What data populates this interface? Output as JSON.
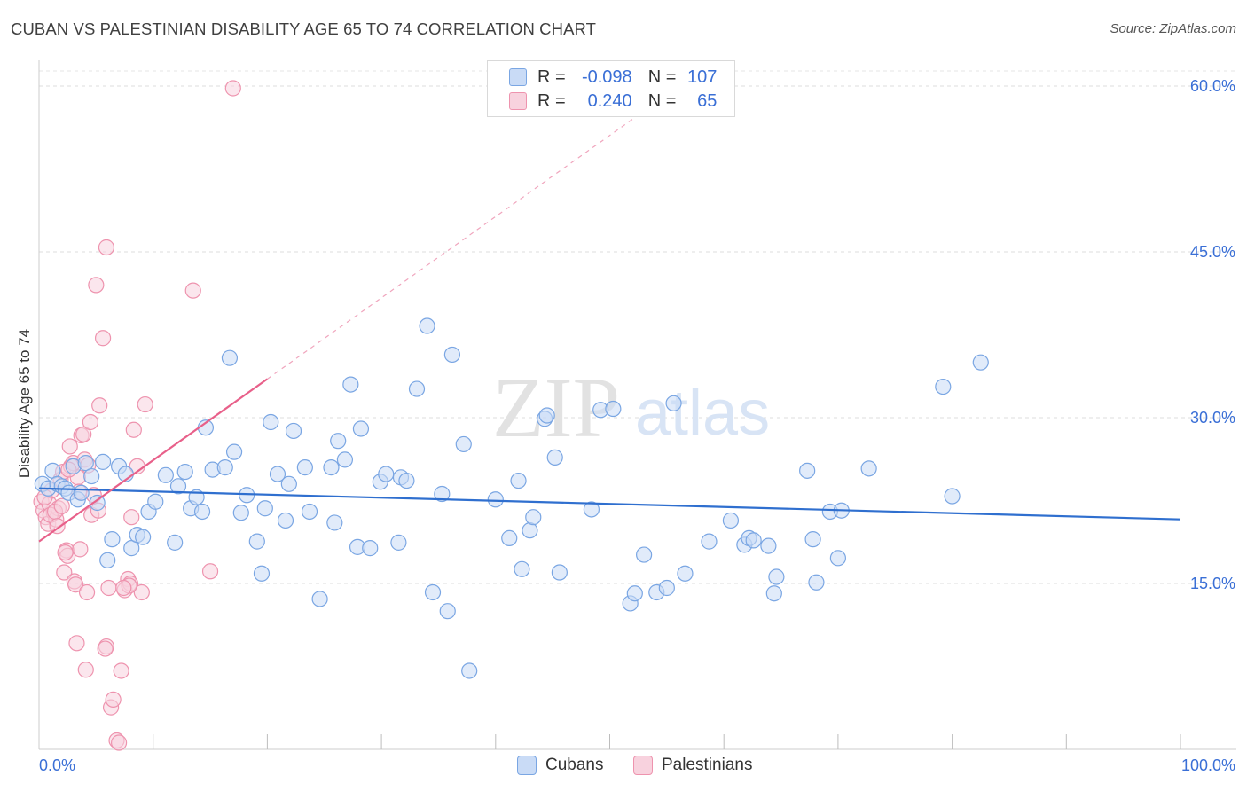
{
  "header": {
    "title": "CUBAN VS PALESTINIAN DISABILITY AGE 65 TO 74 CORRELATION CHART",
    "source": "Source: ZipAtlas.com"
  },
  "watermark": {
    "zip": "ZIP",
    "atlas": "atlas"
  },
  "legend": {
    "rows": [
      {
        "r_label": "R =",
        "r_value": "-0.098",
        "n_label": "N =",
        "n_value": "107",
        "color": "#a9c6f0",
        "border": "#7aa6e3"
      },
      {
        "r_label": "R =",
        "r_value": "0.240",
        "n_label": "N =",
        "n_value": "65",
        "color": "#f8bfd0",
        "border": "#ee93ae"
      }
    ]
  },
  "bottom_legend": {
    "cubans": "Cubans",
    "palestinians": "Palestinians"
  },
  "chart_data": {
    "type": "scatter",
    "title": "CUBAN VS PALESTINIAN DISABILITY AGE 65 TO 74 CORRELATION CHART",
    "xlabel": "",
    "ylabel": "Disability Age 65 to 74",
    "xlim": [
      0,
      100
    ],
    "ylim": [
      0,
      60
    ],
    "y_ticks": [
      {
        "value": 15,
        "label": "15.0%"
      },
      {
        "value": 30,
        "label": "30.0%"
      },
      {
        "value": 45,
        "label": "45.0%"
      },
      {
        "value": 60,
        "label": "60.0%"
      }
    ],
    "x_tick_labels": {
      "min": "0.0%",
      "max": "100.0%"
    },
    "x_minor_ticks": [
      10,
      20,
      30,
      40,
      50,
      60,
      70,
      80,
      90,
      100
    ],
    "grid": true,
    "legend_placement": "bottom-center",
    "series": [
      {
        "name": "Cubans",
        "color": "#7aa6e3",
        "fill": "#c9dbf6",
        "trend": {
          "x": [
            0,
            100
          ],
          "y": [
            23.6,
            20.8
          ],
          "color": "#2f6fcf"
        },
        "points": [
          [
            0.3,
            24.0
          ],
          [
            0.8,
            23.6
          ],
          [
            1.2,
            25.2
          ],
          [
            1.6,
            24.0
          ],
          [
            2.0,
            23.8
          ],
          [
            2.3,
            23.6
          ],
          [
            2.6,
            23.2
          ],
          [
            3.0,
            25.6
          ],
          [
            3.4,
            22.6
          ],
          [
            3.7,
            23.2
          ],
          [
            4.1,
            25.9
          ],
          [
            4.6,
            24.7
          ],
          [
            5.1,
            22.3
          ],
          [
            5.6,
            26.0
          ],
          [
            6.0,
            17.1
          ],
          [
            6.4,
            19.0
          ],
          [
            7.0,
            25.6
          ],
          [
            7.6,
            24.9
          ],
          [
            8.1,
            18.2
          ],
          [
            8.6,
            19.4
          ],
          [
            9.1,
            19.2
          ],
          [
            9.6,
            21.5
          ],
          [
            10.2,
            22.4
          ],
          [
            11.1,
            24.8
          ],
          [
            11.9,
            18.7
          ],
          [
            12.2,
            23.8
          ],
          [
            12.8,
            25.1
          ],
          [
            13.3,
            21.8
          ],
          [
            13.8,
            22.8
          ],
          [
            14.3,
            21.5
          ],
          [
            14.6,
            29.1
          ],
          [
            15.2,
            25.3
          ],
          [
            16.3,
            25.5
          ],
          [
            16.7,
            35.4
          ],
          [
            17.1,
            26.9
          ],
          [
            17.7,
            21.4
          ],
          [
            18.2,
            23.0
          ],
          [
            19.1,
            18.8
          ],
          [
            19.5,
            15.9
          ],
          [
            19.8,
            21.8
          ],
          [
            20.3,
            29.6
          ],
          [
            20.9,
            24.9
          ],
          [
            21.6,
            20.7
          ],
          [
            21.9,
            24.0
          ],
          [
            22.3,
            28.8
          ],
          [
            23.3,
            25.5
          ],
          [
            23.7,
            21.5
          ],
          [
            24.6,
            13.6
          ],
          [
            25.6,
            25.5
          ],
          [
            25.9,
            20.5
          ],
          [
            26.2,
            27.9
          ],
          [
            26.8,
            26.2
          ],
          [
            27.3,
            33.0
          ],
          [
            27.9,
            18.3
          ],
          [
            28.2,
            29.0
          ],
          [
            29.0,
            18.2
          ],
          [
            29.9,
            24.2
          ],
          [
            30.4,
            24.9
          ],
          [
            31.5,
            18.7
          ],
          [
            31.7,
            24.6
          ],
          [
            32.2,
            24.3
          ],
          [
            33.1,
            32.6
          ],
          [
            34.0,
            38.3
          ],
          [
            34.5,
            14.2
          ],
          [
            35.3,
            23.1
          ],
          [
            35.8,
            12.5
          ],
          [
            36.2,
            35.7
          ],
          [
            37.2,
            27.6
          ],
          [
            37.7,
            7.1
          ],
          [
            40.0,
            22.6
          ],
          [
            41.2,
            19.1
          ],
          [
            42.0,
            24.3
          ],
          [
            42.3,
            16.3
          ],
          [
            43.0,
            19.8
          ],
          [
            43.3,
            21.0
          ],
          [
            44.3,
            29.9
          ],
          [
            44.5,
            30.2
          ],
          [
            45.2,
            26.4
          ],
          [
            45.6,
            16.0
          ],
          [
            48.4,
            21.7
          ],
          [
            49.2,
            30.7
          ],
          [
            50.3,
            30.8
          ],
          [
            51.8,
            13.2
          ],
          [
            52.2,
            14.1
          ],
          [
            53.0,
            17.6
          ],
          [
            54.1,
            14.2
          ],
          [
            55.0,
            14.6
          ],
          [
            55.6,
            31.3
          ],
          [
            56.6,
            15.9
          ],
          [
            58.7,
            18.8
          ],
          [
            60.6,
            20.7
          ],
          [
            61.8,
            18.5
          ],
          [
            62.2,
            19.1
          ],
          [
            62.6,
            18.9
          ],
          [
            63.9,
            18.4
          ],
          [
            64.4,
            14.1
          ],
          [
            64.6,
            15.6
          ],
          [
            67.3,
            25.2
          ],
          [
            67.8,
            19.0
          ],
          [
            68.1,
            15.1
          ],
          [
            69.3,
            21.5
          ],
          [
            70.0,
            17.3
          ],
          [
            70.3,
            21.6
          ],
          [
            72.7,
            25.4
          ],
          [
            79.2,
            32.8
          ],
          [
            80.0,
            22.9
          ],
          [
            82.5,
            35.0
          ]
        ]
      },
      {
        "name": "Palestinians",
        "color": "#ee93ae",
        "fill": "#f8d2de",
        "trend": {
          "x": [
            0,
            20
          ],
          "y": [
            18.8,
            33.5
          ],
          "dashed_to": [
            52,
            57
          ],
          "color": "#e8608a"
        },
        "points": [
          [
            0.2,
            22.4
          ],
          [
            0.4,
            21.6
          ],
          [
            0.6,
            21.0
          ],
          [
            0.8,
            20.4
          ],
          [
            0.9,
            22.2
          ],
          [
            1.1,
            23.4
          ],
          [
            1.3,
            21.4
          ],
          [
            1.5,
            20.8
          ],
          [
            1.7,
            21.8
          ],
          [
            1.9,
            24.4
          ],
          [
            2.1,
            25.1
          ],
          [
            2.2,
            16.0
          ],
          [
            2.4,
            18.0
          ],
          [
            2.5,
            17.5
          ],
          [
            2.7,
            27.4
          ],
          [
            2.8,
            25.6
          ],
          [
            3.0,
            25.9
          ],
          [
            3.1,
            15.2
          ],
          [
            3.2,
            14.9
          ],
          [
            3.3,
            9.6
          ],
          [
            3.4,
            24.6
          ],
          [
            3.6,
            18.1
          ],
          [
            3.7,
            28.4
          ],
          [
            3.9,
            28.5
          ],
          [
            4.0,
            26.2
          ],
          [
            4.1,
            7.2
          ],
          [
            4.2,
            14.2
          ],
          [
            4.3,
            25.7
          ],
          [
            4.5,
            29.6
          ],
          [
            4.6,
            21.2
          ],
          [
            4.8,
            23.0
          ],
          [
            5.0,
            42.0
          ],
          [
            5.3,
            31.1
          ],
          [
            5.6,
            37.2
          ],
          [
            5.9,
            45.4
          ],
          [
            6.1,
            14.6
          ],
          [
            6.3,
            3.8
          ],
          [
            6.5,
            4.5
          ],
          [
            6.8,
            0.8
          ],
          [
            7.0,
            0.6
          ],
          [
            7.2,
            7.1
          ],
          [
            7.5,
            14.4
          ],
          [
            7.8,
            15.4
          ],
          [
            8.0,
            15.0
          ],
          [
            8.3,
            28.9
          ],
          [
            8.6,
            25.6
          ],
          [
            9.0,
            14.2
          ],
          [
            9.3,
            31.2
          ],
          [
            13.5,
            41.5
          ],
          [
            15.0,
            16.1
          ],
          [
            17.0,
            59.8
          ],
          [
            8.1,
            21.0
          ],
          [
            5.9,
            9.3
          ],
          [
            5.8,
            9.1
          ],
          [
            1.0,
            21.2
          ],
          [
            1.4,
            21.5
          ],
          [
            2.0,
            22.0
          ],
          [
            2.6,
            25.3
          ],
          [
            0.5,
            22.8
          ],
          [
            1.6,
            20.2
          ],
          [
            3.5,
            23.3
          ],
          [
            7.9,
            14.8
          ],
          [
            7.4,
            14.6
          ],
          [
            2.3,
            17.8
          ],
          [
            5.2,
            21.6
          ]
        ]
      }
    ]
  }
}
